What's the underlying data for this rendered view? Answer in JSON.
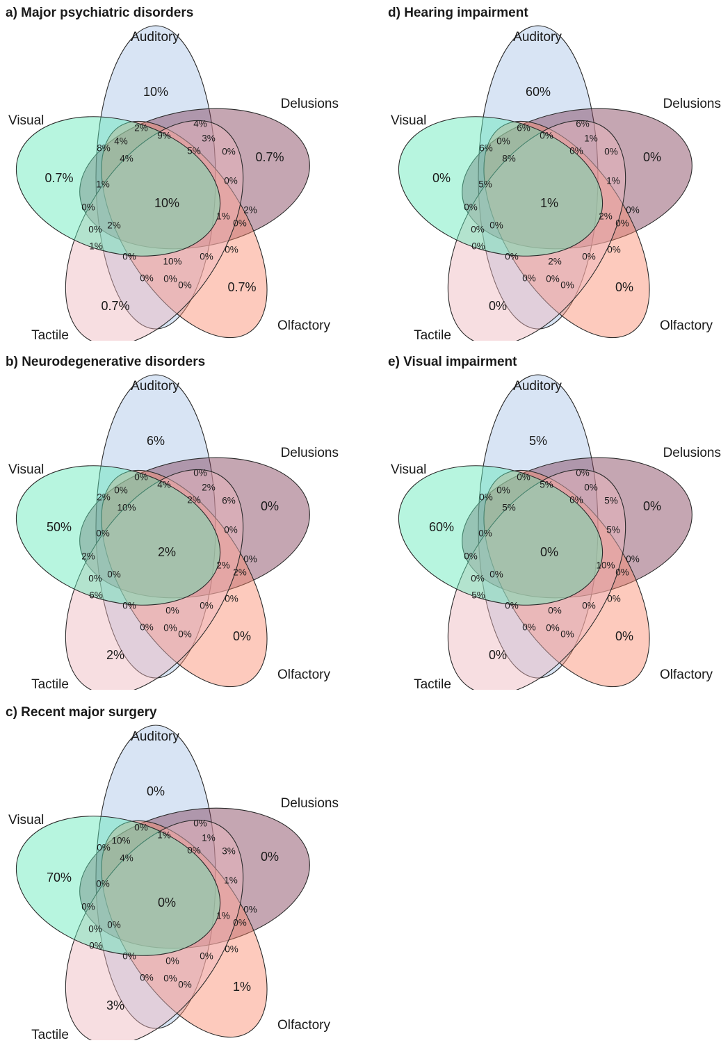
{
  "set_names": [
    "Auditory",
    "Delusions",
    "Olfactory",
    "Tactile",
    "Visual"
  ],
  "colors": {
    "Auditory": "#a9c4e6",
    "Delusions": "#7e3a55",
    "Olfactory": "#fb8a6c",
    "Tactile": "#eeb6bc",
    "Visual": "#5fe8b8"
  },
  "region_keys": [
    "A",
    "D",
    "O",
    "T",
    "V",
    "AD",
    "AO",
    "AT",
    "AV",
    "DO",
    "DT",
    "DV",
    "OT",
    "OV",
    "TV",
    "ADO",
    "ADT",
    "ADV",
    "AOT",
    "AOV",
    "ATV",
    "DOT",
    "DOV",
    "DTV",
    "OTV",
    "ADOT",
    "ADOV",
    "ADTV",
    "AOTV",
    "DOTV",
    "ADOTV"
  ],
  "panels": [
    {
      "title": "a) Major psychiatric disorders",
      "regions": {
        "A": "10%",
        "D": "0.7%",
        "O": "0.7%",
        "T": "0.7%",
        "V": "0.7%",
        "AD": "4%",
        "AO": "2%",
        "AT": "0%",
        "AV": "8%",
        "DO": "2%",
        "DT": "0%",
        "DV": "0%",
        "OT": "0%",
        "OV": "0%",
        "TV": "1%",
        "ADO": "9%",
        "ADT": "3%",
        "ADV": "4%",
        "AOT": "0%",
        "AOV": "0%",
        "ATV": "1%",
        "DOT": "0%",
        "DOV": "0%",
        "DTV": "0%",
        "OTV": "0%",
        "ADOT": "5%",
        "ADOV": "4%",
        "ADTV": "1%",
        "AOTV": "2%",
        "DOTV": "10%",
        "ADOTV": "10%"
      }
    },
    {
      "title": "b) Neurodegenerative disorders",
      "regions": {
        "A": "6%",
        "D": "0%",
        "O": "0%",
        "T": "2%",
        "V": "50%",
        "AD": "0%",
        "AO": "0%",
        "AT": "0%",
        "AV": "2%",
        "DO": "0%",
        "DT": "2%",
        "DV": "0%",
        "OT": "0%",
        "OV": "0%",
        "TV": "6%",
        "ADO": "4%",
        "ADT": "2%",
        "ADV": "0%",
        "AOT": "0%",
        "AOV": "6%",
        "ATV": "0%",
        "DOT": "0%",
        "DOV": "2%",
        "DTV": "0%",
        "OTV": "0%",
        "ADOT": "2%",
        "ADOV": "10%",
        "ADTV": "2%",
        "AOTV": "0%",
        "DOTV": "0%",
        "ADOTV": "2%"
      }
    },
    {
      "title": "c) Recent major surgery",
      "regions": {
        "A": "0%",
        "D": "0%",
        "O": "1%",
        "T": "3%",
        "V": "70%",
        "AD": "0%",
        "AO": "0%",
        "AT": "0%",
        "AV": "0%",
        "DO": "0%",
        "DT": "0%",
        "DV": "1%",
        "OT": "0%",
        "OV": "0%",
        "TV": "0%",
        "ADO": "1%",
        "ADT": "1%",
        "ADV": "10%",
        "AOT": "0%",
        "AOV": "3%",
        "ATV": "0%",
        "DOT": "0%",
        "DOV": "0%",
        "DTV": "0%",
        "OTV": "0%",
        "ADOT": "0%",
        "ADOV": "4%",
        "ADTV": "1%",
        "AOTV": "0%",
        "DOTV": "0%",
        "ADOTV": "0%"
      }
    },
    {
      "title": "d) Hearing impairment",
      "regions": {
        "A": "60%",
        "D": "0%",
        "O": "0%",
        "T": "0%",
        "V": "0%",
        "AD": "6%",
        "AO": "6%",
        "AT": "0%",
        "AV": "6%",
        "DO": "0%",
        "DT": "0%",
        "DV": "1%",
        "OT": "0%",
        "OV": "0%",
        "TV": "0%",
        "ADO": "0%",
        "ADT": "1%",
        "ADV": "0%",
        "AOT": "0%",
        "AOV": "0%",
        "ATV": "5%",
        "DOT": "0%",
        "DOV": "0%",
        "DTV": "0%",
        "OTV": "0%",
        "ADOT": "0%",
        "ADOV": "8%",
        "ADTV": "2%",
        "AOTV": "0%",
        "DOTV": "2%",
        "ADOTV": "1%"
      }
    },
    {
      "title": "e) Visual impairment",
      "regions": {
        "A": "5%",
        "D": "0%",
        "O": "0%",
        "T": "0%",
        "V": "60%",
        "AD": "0%",
        "AO": "0%",
        "AT": "0%",
        "AV": "0%",
        "DO": "0%",
        "DT": "0%",
        "DV": "5%",
        "OT": "0%",
        "OV": "0%",
        "TV": "5%",
        "ADO": "5%",
        "ADT": "0%",
        "ADV": "0%",
        "AOT": "0%",
        "AOV": "5%",
        "ATV": "0%",
        "DOT": "0%",
        "DOV": "0%",
        "DTV": "0%",
        "OTV": "0%",
        "ADOT": "0%",
        "ADOV": "5%",
        "ADTV": "10%",
        "AOTV": "0%",
        "DOTV": "0%",
        "ADOTV": "0%"
      }
    }
  ]
}
